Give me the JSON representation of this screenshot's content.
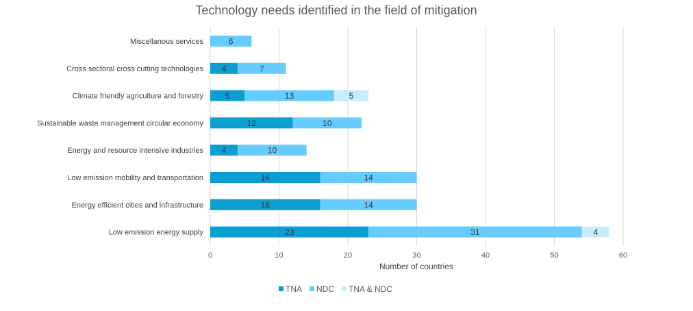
{
  "chart_data": {
    "type": "bar",
    "orientation": "horizontal",
    "stacked": true,
    "title": "Technology needs identified in the field of mitigation",
    "xlabel": "Number of countries",
    "ylabel": "",
    "xlim": [
      0,
      60
    ],
    "xticks": [
      0,
      10,
      20,
      30,
      40,
      50,
      60
    ],
    "grid": true,
    "legend_position": "bottom",
    "categories": [
      "Miscellanous services",
      "Cross sectoral cross cutting technologies",
      "Climate friendly agriculture and forestry",
      "Sustainable waste management circular economy",
      "Energy and resource intensive industries",
      "Low emission mobility and transportation",
      "Energy efficient cities and infrastructure",
      "Low emission energy supply"
    ],
    "series": [
      {
        "name": "TNA",
        "color": "#0b9fd1",
        "values": [
          0,
          4,
          5,
          12,
          4,
          16,
          16,
          23
        ]
      },
      {
        "name": "NDC",
        "color": "#66ccff",
        "values": [
          6,
          7,
          13,
          10,
          10,
          14,
          14,
          31
        ]
      },
      {
        "name": "TNA & NDC",
        "color": "#c9ecfc",
        "values": [
          0,
          0,
          5,
          0,
          0,
          0,
          0,
          4
        ]
      }
    ]
  }
}
